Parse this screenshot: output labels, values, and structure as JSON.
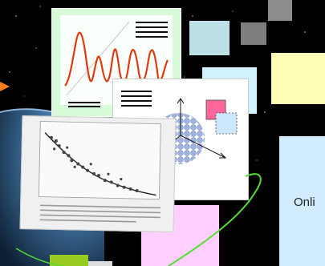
{
  "promo_collage": {
    "panel_text": "Onli",
    "colors": {
      "background": "#000000",
      "chart_card_bg": "#d6fbd6",
      "wave_line": "#e03a10",
      "light_blue_tile": "#bde0e6",
      "yellow_tile": "#ffffb8",
      "pale_blue_panel": "#d2ecff",
      "pink_tile": "#ffd0ff",
      "green_tile": "#99cc22",
      "gray_tile": "#888888",
      "green_orbit": "#55dd33",
      "pink_square": "#ff6699",
      "blue_square": "#cce8ff"
    },
    "icons": [
      "orange-arrow-icon",
      "axes-sphere-icon",
      "bell-wave-chart-icon",
      "scatter-plot-icon"
    ]
  }
}
